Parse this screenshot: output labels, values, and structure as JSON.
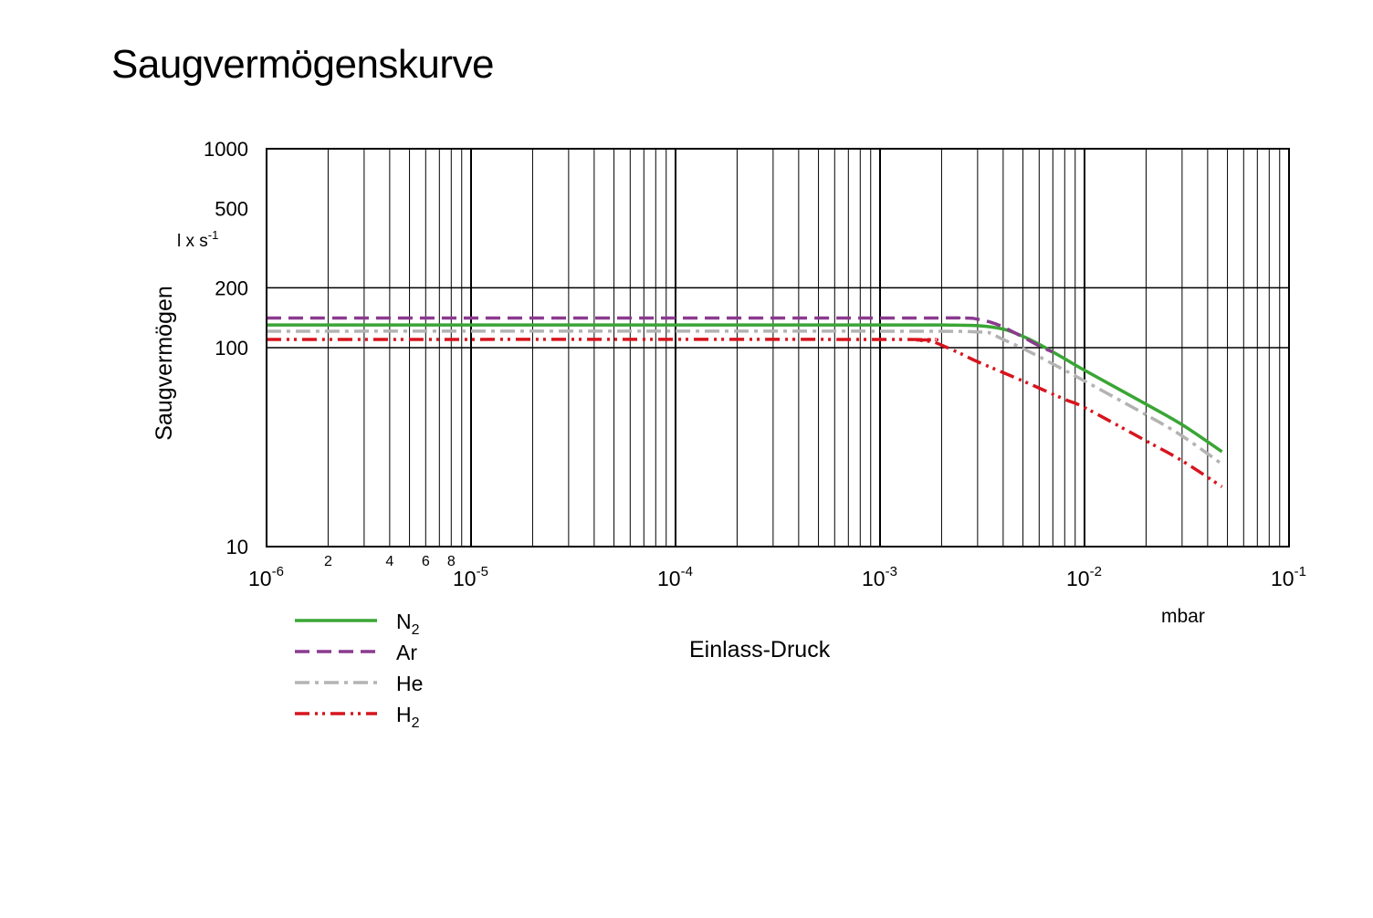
{
  "title": "Saugvermögenskurve",
  "chart_data": {
    "type": "line",
    "title": "Saugvermögenskurve",
    "xlabel": "Einlass-Druck",
    "xunit": "mbar",
    "ylabel": "Saugvermögen",
    "yunit": "l x s",
    "yunit_exp": "-1",
    "x_scale": "log",
    "y_scale": "log",
    "xlim": [
      1e-06,
      0.1
    ],
    "ylim": [
      10,
      1000
    ],
    "grid": true,
    "legend_position": "bottom-left",
    "x_major_ticks": [
      {
        "value": 1e-06,
        "base": "10",
        "exp": "-6"
      },
      {
        "value": 1e-05,
        "base": "10",
        "exp": "-5"
      },
      {
        "value": 0.0001,
        "base": "10",
        "exp": "-4"
      },
      {
        "value": 0.001,
        "base": "10",
        "exp": "-3"
      },
      {
        "value": 0.01,
        "base": "10",
        "exp": "-2"
      },
      {
        "value": 0.1,
        "base": "10",
        "exp": "-1"
      }
    ],
    "x_minor_labels": [
      {
        "value": 2e-06,
        "label": "2"
      },
      {
        "value": 4e-06,
        "label": "4"
      },
      {
        "value": 6e-06,
        "label": "6"
      },
      {
        "value": 8e-06,
        "label": "8"
      }
    ],
    "y_ticks": [
      {
        "value": 1000,
        "label": "1000"
      },
      {
        "value": 500,
        "label": "500"
      },
      {
        "value": 200,
        "label": "200"
      },
      {
        "value": 100,
        "label": "100"
      },
      {
        "value": 10,
        "label": "10"
      }
    ],
    "series": [
      {
        "name": "N",
        "sub": "2",
        "color": "#3aa535",
        "dash": "solid",
        "points": [
          [
            1e-06,
            130
          ],
          [
            0.001,
            130
          ],
          [
            0.002,
            130
          ],
          [
            0.003,
            129
          ],
          [
            0.004,
            124
          ],
          [
            0.005,
            114
          ],
          [
            0.006,
            104
          ],
          [
            0.008,
            88
          ],
          [
            0.01,
            77
          ],
          [
            0.02,
            52
          ],
          [
            0.03,
            41
          ],
          [
            0.047,
            30
          ]
        ]
      },
      {
        "name": "Ar",
        "sub": "",
        "color": "#8b3a8f",
        "dash": "dash",
        "points": [
          [
            1e-06,
            141
          ],
          [
            0.001,
            141
          ],
          [
            0.0025,
            141
          ],
          [
            0.003,
            139
          ],
          [
            0.0035,
            134
          ],
          [
            0.004,
            127
          ],
          [
            0.005,
            113
          ],
          [
            0.006,
            102
          ],
          [
            0.007,
            95
          ]
        ]
      },
      {
        "name": "He",
        "sub": "",
        "color": "#b3b3b3",
        "dash": "dashdot",
        "points": [
          [
            1e-06,
            121
          ],
          [
            0.001,
            121
          ],
          [
            0.003,
            120
          ],
          [
            0.0035,
            117
          ],
          [
            0.004,
            110
          ],
          [
            0.005,
            99
          ],
          [
            0.006,
            90
          ],
          [
            0.008,
            77
          ],
          [
            0.01,
            68
          ],
          [
            0.02,
            46
          ],
          [
            0.03,
            36
          ],
          [
            0.047,
            26
          ]
        ]
      },
      {
        "name": "H",
        "sub": "2",
        "color": "#d7141e",
        "dash": "dashdotdot",
        "points": [
          [
            1e-06,
            110
          ],
          [
            0.001,
            110
          ],
          [
            0.0015,
            109
          ],
          [
            0.0018,
            107
          ],
          [
            0.002,
            103
          ],
          [
            0.0025,
            93
          ],
          [
            0.003,
            85
          ],
          [
            0.005,
            68
          ],
          [
            0.008,
            55
          ],
          [
            0.01,
            50
          ],
          [
            0.02,
            34
          ],
          [
            0.03,
            27
          ],
          [
            0.047,
            20
          ]
        ]
      }
    ]
  }
}
